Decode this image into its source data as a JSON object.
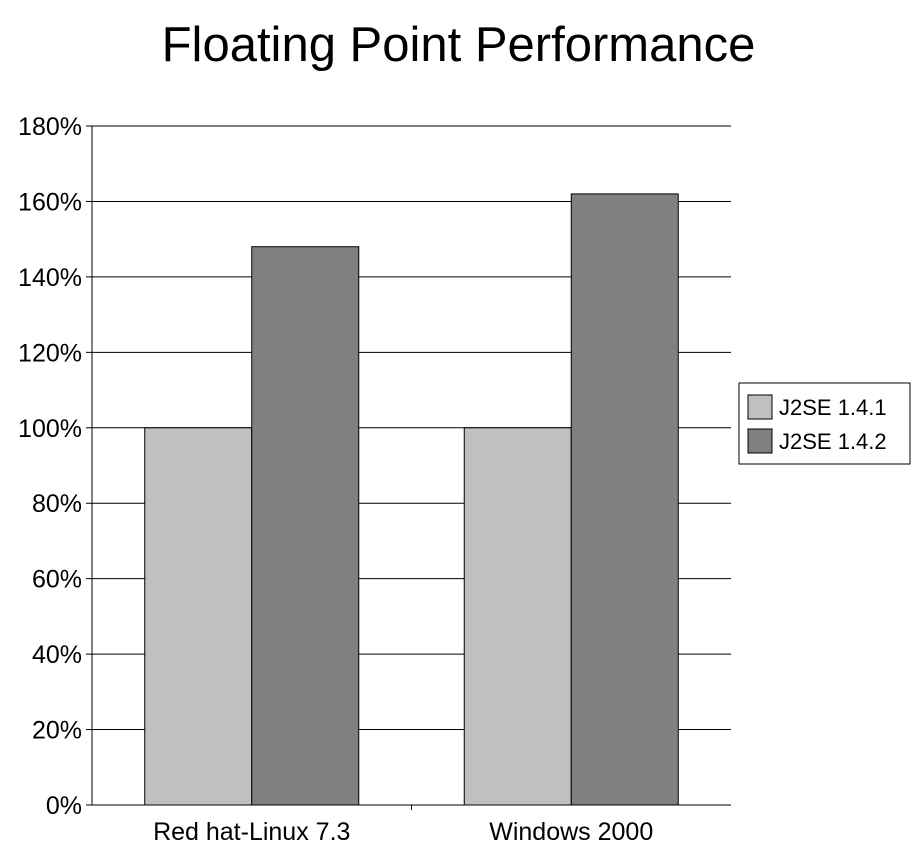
{
  "chart_data": {
    "type": "bar",
    "title": "Floating Point Performance",
    "xlabel": "",
    "ylabel": "",
    "categories": [
      "Red hat-Linux 7.3",
      "Windows 2000"
    ],
    "series": [
      {
        "name": "J2SE 1.4.1",
        "values": [
          100,
          100
        ],
        "color": "#c0c0c0"
      },
      {
        "name": "J2SE 1.4.2",
        "values": [
          148,
          162
        ],
        "color": "#808080"
      }
    ],
    "ylim": [
      0,
      180
    ],
    "y_ticks": [
      0,
      20,
      40,
      60,
      80,
      100,
      120,
      140,
      160,
      180
    ],
    "y_tick_format": "percent",
    "grid": true,
    "legend_position": "right"
  }
}
